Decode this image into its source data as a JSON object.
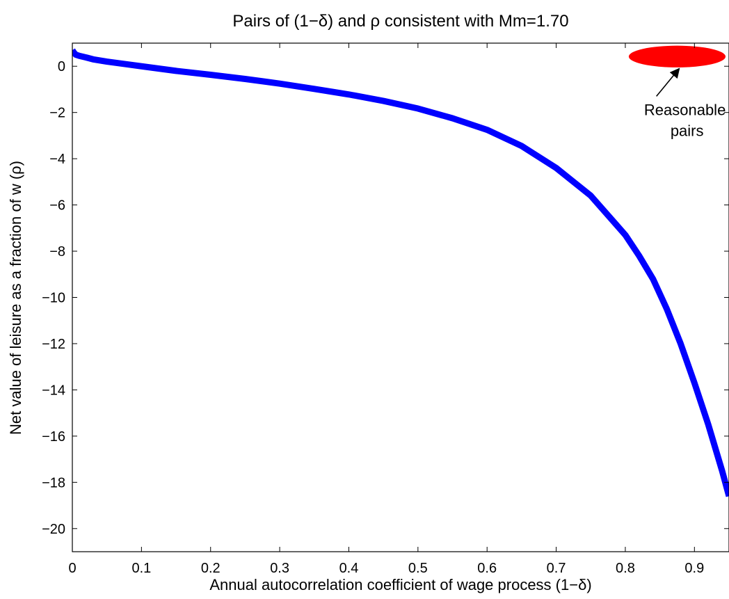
{
  "chart_data": {
    "type": "line",
    "title": "Pairs of (1−δ) and ρ consistent with Mm=1.70",
    "xlabel": "Annual autocorrelation coefficient of wage process (1−δ)",
    "ylabel": "Net value of leisure as a fraction of w (ρ)",
    "xlim": [
      0,
      0.95
    ],
    "ylim": [
      -21,
      1
    ],
    "x_ticks": [
      0,
      0.1,
      0.2,
      0.3,
      0.4,
      0.5,
      0.6,
      0.7,
      0.8,
      0.9
    ],
    "x_tick_labels": [
      "0",
      "0.1",
      "0.2",
      "0.3",
      "0.4",
      "0.5",
      "0.6",
      "0.7",
      "0.8",
      "0.9"
    ],
    "y_ticks": [
      0,
      -2,
      -4,
      -6,
      -8,
      -10,
      -12,
      -14,
      -16,
      -18,
      -20
    ],
    "y_tick_labels": [
      "0",
      "−2",
      "−4",
      "−6",
      "−8",
      "−10",
      "−12",
      "−14",
      "−16",
      "−18",
      "−20"
    ],
    "grid": false,
    "series": [
      {
        "color": "#0000ff",
        "x": [
          0.0,
          0.002,
          0.005,
          0.01,
          0.02,
          0.03,
          0.05,
          0.08,
          0.1,
          0.15,
          0.2,
          0.25,
          0.3,
          0.35,
          0.4,
          0.45,
          0.5,
          0.55,
          0.6,
          0.65,
          0.7,
          0.75,
          0.8,
          0.82,
          0.84,
          0.86,
          0.88,
          0.9,
          0.92,
          0.94,
          0.95
        ],
        "y": [
          0.7,
          0.6,
          0.5,
          0.45,
          0.38,
          0.3,
          0.2,
          0.08,
          0.0,
          -0.2,
          -0.37,
          -0.55,
          -0.75,
          -0.98,
          -1.22,
          -1.5,
          -1.83,
          -2.25,
          -2.75,
          -3.45,
          -4.4,
          -5.6,
          -7.3,
          -8.2,
          -9.2,
          -10.5,
          -12.0,
          -13.7,
          -15.5,
          -17.5,
          -18.6
        ]
      }
    ],
    "highlight_region": {
      "label": "Reasonable pairs",
      "label_lines": [
        "Reasonable",
        "pairs"
      ],
      "color": "#ff0000",
      "center": [
        0.875,
        0.42
      ],
      "x_radius": 0.07,
      "y_radius": 0.47
    },
    "annotation_arrow": {
      "from": [
        0.845,
        -1.3
      ],
      "to": [
        0.878,
        -0.1
      ]
    }
  }
}
